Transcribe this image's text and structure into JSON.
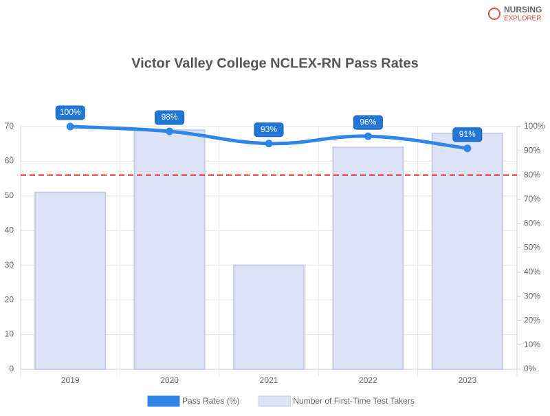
{
  "logo": {
    "line1": "NURSING",
    "line2": "EXPLORER"
  },
  "chart_data": {
    "type": "bar_line",
    "title": "Victor Valley College NCLEX-RN Pass Rates",
    "categories": [
      "2019",
      "2020",
      "2021",
      "2022",
      "2023"
    ],
    "series": [
      {
        "name": "Pass Rates (%)",
        "type": "line",
        "axis": "y2",
        "color": "#2e86e8",
        "values": [
          100,
          98,
          93,
          96,
          91
        ],
        "value_labels": [
          "100%",
          "98%",
          "93%",
          "96%",
          "91%"
        ]
      },
      {
        "name": "Number of First-Time Test Takers",
        "type": "bar",
        "axis": "y",
        "color": "#dce3f7",
        "border_color": "#c5cde6",
        "values": [
          51,
          69,
          30,
          64,
          68
        ]
      }
    ],
    "ylim": [
      0,
      70
    ],
    "yticks": [
      0,
      10,
      20,
      30,
      40,
      50,
      60,
      70
    ],
    "y2lim": [
      0,
      100
    ],
    "y2ticks": [
      {
        "value": 0,
        "label": "0%"
      },
      {
        "value": 10,
        "label": "10%"
      },
      {
        "value": 20,
        "label": "20%"
      },
      {
        "value": 30,
        "label": "30%"
      },
      {
        "value": 40,
        "label": "40%"
      },
      {
        "value": 50,
        "label": "50%"
      },
      {
        "value": 60,
        "label": "60%"
      },
      {
        "value": 70,
        "label": "70%"
      },
      {
        "value": 80,
        "label": "80%"
      },
      {
        "value": 90,
        "label": "90%"
      },
      {
        "value": 100,
        "label": "100%"
      }
    ],
    "reference_line": {
      "value": 80,
      "axis": "y2",
      "color": "#e02424"
    },
    "grid": true,
    "legend": "bottom"
  }
}
